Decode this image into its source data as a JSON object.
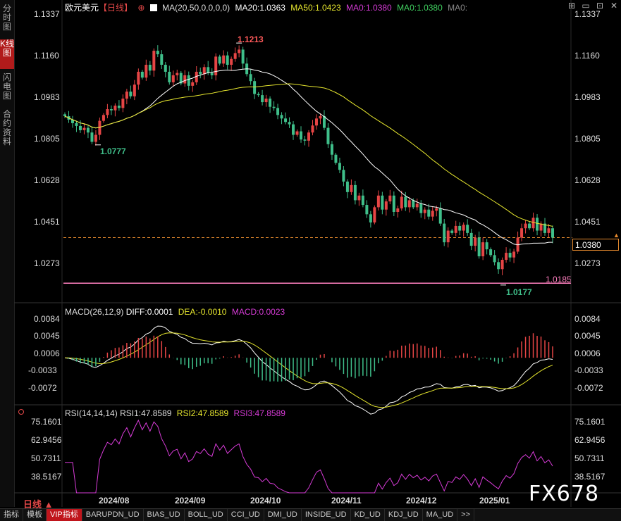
{
  "sidebar": {
    "items": [
      {
        "label": "分时图"
      },
      {
        "label": "K线图"
      },
      {
        "label": "闪电图"
      },
      {
        "label": "合约资料"
      }
    ]
  },
  "header": {
    "symbol": "欧元美元",
    "period": "【日线】",
    "ma_params": "MA(20,50,0,0,0,0)",
    "ma20": "MA20:1.0363",
    "ma50": "MA50:1.0423",
    "ma0a": "MA0:1.0380",
    "ma0b": "MA0:1.0380",
    "ma0c": "MA0:",
    "ma_color_20": "#ffffff",
    "ma_color_50": "#e6e62e"
  },
  "price_axis": {
    "ticks": [
      "1.1337",
      "1.1160",
      "1.0983",
      "1.0805",
      "1.0628",
      "1.0451",
      "1.0273"
    ],
    "left_ticks": [
      "1.1337",
      "1.1160",
      "1.0983",
      "1.0805",
      "1.0628",
      "1.0451",
      "1.0273"
    ],
    "current_price": "1.0380",
    "support_line": "1.0185",
    "high_label": "1.1213",
    "low_label_1": "1.0777",
    "low_label_2": "1.0177"
  },
  "macd": {
    "header": "MACD(26,12,9)",
    "diff": "DIFF:0.0001",
    "dea": "DEA:-0.0010",
    "macd": "MACD:0.0023",
    "ticks": [
      "0.0084",
      "0.0045",
      "0.0006",
      "-0.0033",
      "-0.0072"
    ]
  },
  "rsi": {
    "header": "RSI(14,14,14)",
    "rsi1": "RSI1:47.8589",
    "rsi2": "RSI2:47.8589",
    "rsi3": "RSI3:47.8589",
    "ticks": [
      "75.1601",
      "62.9456",
      "50.7311",
      "38.5167"
    ]
  },
  "dates": [
    "2024/08",
    "2024/09",
    "2024/10",
    "2024/11",
    "2024/12",
    "2025/01"
  ],
  "period_selector": "日线",
  "watermark": "FX678",
  "bottom_tabs": [
    "指标",
    "模板",
    "VIP指标",
    "BARUPDN_UD",
    "BIAS_UD",
    "BOLL_UD",
    "CCI_UD",
    "DMI_UD",
    "INSIDE_UD",
    "KD_UD",
    "KDJ_UD",
    "MA_UD",
    ">>"
  ],
  "colors": {
    "up": "#e64545",
    "down": "#3fbf8a",
    "ma20": "#ffffff",
    "ma50": "#e6e62e",
    "macd_dea": "#e6e62e",
    "rsi": "#d63bd6",
    "support": "#ff7fbf",
    "price_dash": "#e68a2e"
  },
  "close_prices": [
    1.09,
    1.0885,
    1.087,
    1.0858,
    1.084,
    1.085,
    1.083,
    1.079,
    1.082,
    1.088,
    1.0905,
    1.093,
    1.0925,
    1.0945,
    1.0935,
    1.0975,
    1.1005,
    1.0985,
    1.1035,
    1.109,
    1.1065,
    1.112,
    1.1095,
    1.118,
    1.1165,
    1.112,
    1.109,
    1.1045,
    1.1075,
    1.1085,
    1.104,
    1.1075,
    1.103,
    1.1045,
    1.109,
    1.108,
    1.111,
    1.1085,
    1.1075,
    1.1155,
    1.1125,
    1.116,
    1.112,
    1.1145,
    1.117,
    1.1185,
    1.1125,
    1.108,
    1.105,
    1.0995,
    1.099,
    1.096,
    1.0975,
    1.094,
    1.0935,
    1.0905,
    1.089,
    1.0875,
    1.0865,
    1.082,
    1.0835,
    1.08,
    1.0795,
    1.083,
    1.086,
    1.089,
    1.09,
    1.085,
    1.078,
    1.0735,
    1.07,
    1.067,
    1.062,
    1.0575,
    1.0605,
    1.054,
    1.056,
    1.052,
    1.048,
    1.0445,
    1.051,
    1.056,
    1.05,
    1.0535,
    1.056,
    1.049,
    1.0505,
    1.0555,
    1.051,
    1.054,
    1.051,
    1.0525,
    1.0485,
    1.05,
    1.047,
    1.0495,
    1.0505,
    1.044,
    1.036,
    1.041,
    1.04,
    1.043,
    1.041,
    1.0435,
    1.04,
    1.0345,
    1.038,
    1.03,
    1.036,
    1.033,
    1.0305,
    1.0275,
    1.0245,
    1.0285,
    1.0315,
    1.0295,
    1.032,
    1.038,
    1.042,
    1.044,
    1.042,
    1.0465,
    1.041,
    1.044,
    1.04,
    1.042,
    1.038
  ],
  "chart_data": {
    "type": "candlestick",
    "title": "欧元美元【日线】",
    "ylim": [
      1.0185,
      1.1337
    ],
    "annotations": {
      "high": 1.1213,
      "low_aug": 1.0777,
      "low_jan": 1.0177,
      "support": 1.0185,
      "last": 1.038
    },
    "ma20_last": 1.0363,
    "ma50_last": 1.0423,
    "macd": {
      "diff": 0.0001,
      "dea": -0.001,
      "macd": 0.0023,
      "ylim": [
        -0.009,
        0.0095
      ]
    },
    "rsi": {
      "last": 47.8589,
      "ylim": [
        30,
        80
      ]
    }
  }
}
